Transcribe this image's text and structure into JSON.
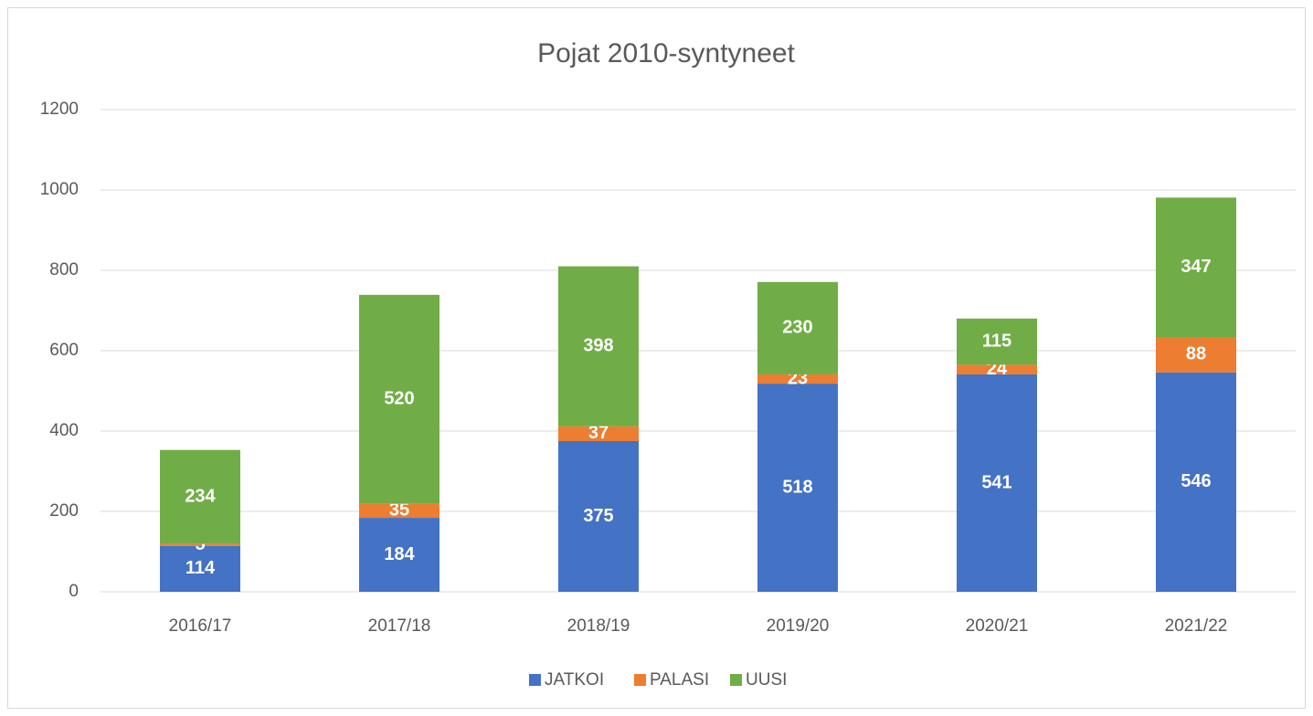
{
  "chart_data": {
    "type": "bar",
    "stacked": true,
    "title": "Pojat 2010-syntyneet",
    "categories": [
      "2016/17",
      "2017/18",
      "2018/19",
      "2019/20",
      "2020/21",
      "2021/22"
    ],
    "series": [
      {
        "name": "JATKOI",
        "color": "#4472c4",
        "values": [
          114,
          184,
          375,
          518,
          541,
          546
        ]
      },
      {
        "name": "PALASI",
        "color": "#ed7d31",
        "values": [
          5,
          35,
          37,
          23,
          24,
          88
        ]
      },
      {
        "name": "UUSI",
        "color": "#70ad47",
        "values": [
          234,
          520,
          398,
          230,
          115,
          347
        ]
      }
    ],
    "ylim": [
      0,
      1200
    ],
    "yticks": [
      0,
      200,
      400,
      600,
      800,
      1000,
      1200
    ],
    "grid": true,
    "legend": "bottom"
  }
}
